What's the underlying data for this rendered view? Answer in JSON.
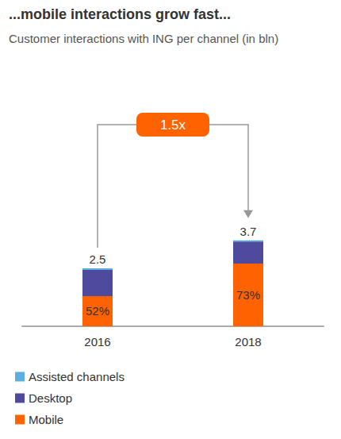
{
  "chart_data": {
    "type": "bar",
    "title": "...mobile interactions grow fast...",
    "subtitle": "Customer interactions with ING per channel (in bln)",
    "categories": [
      "2016",
      "2018"
    ],
    "series": [
      {
        "name": "Mobile",
        "color": "#ff6200",
        "values": [
          1.3,
          2.7
        ],
        "share_labels": [
          "52%",
          "73%"
        ]
      },
      {
        "name": "Desktop",
        "color": "#4e4a9e",
        "values": [
          1.13,
          0.95
        ]
      },
      {
        "name": "Assisted channels",
        "color": "#5aaee0",
        "values": [
          0.07,
          0.05
        ]
      }
    ],
    "totals": [
      2.5,
      3.7
    ],
    "annotations": [
      {
        "text": "1.5x",
        "from": "2016",
        "to": "2018"
      }
    ],
    "stacked": true,
    "ylim": [
      0,
      4
    ],
    "yticks": [
      0,
      1,
      2,
      3,
      4
    ],
    "grid": false,
    "tick_labels": "x",
    "legend": "bottom-left"
  }
}
